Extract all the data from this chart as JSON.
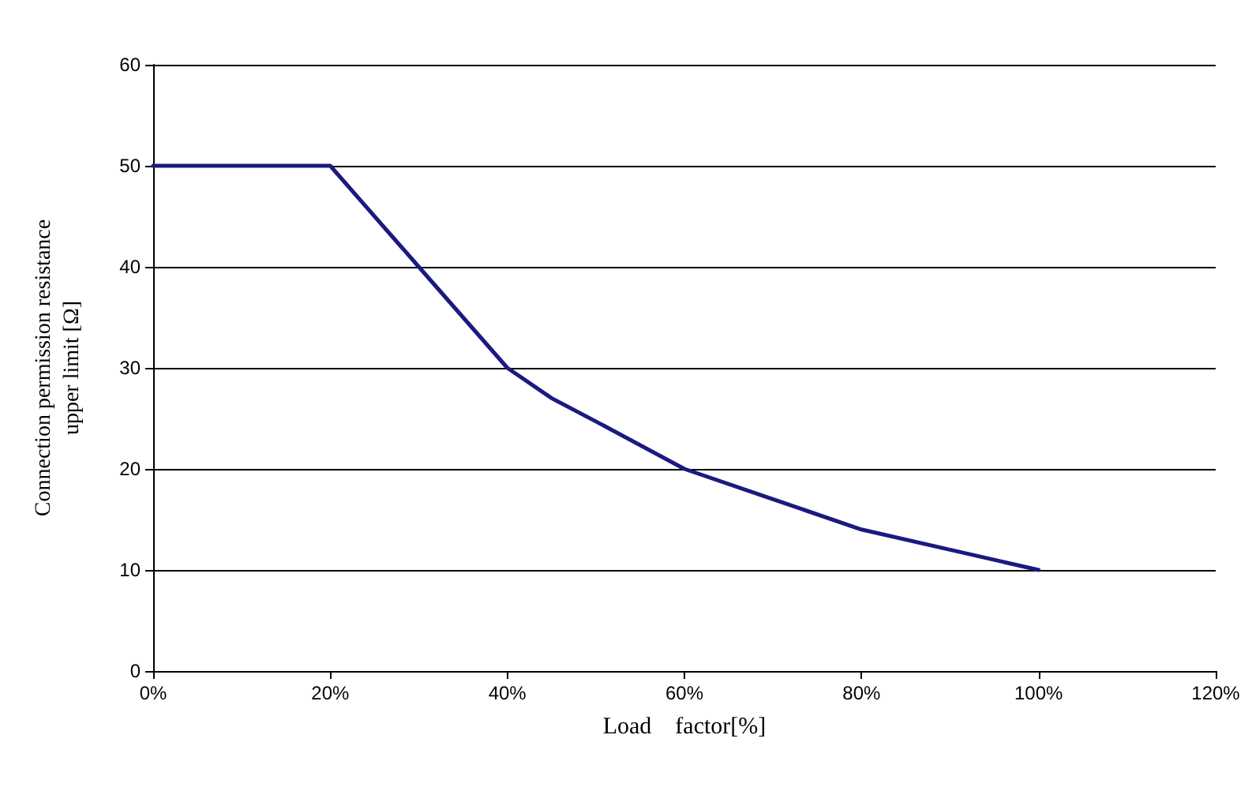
{
  "chart_data": {
    "type": "line",
    "xlabel": "Load　factor[%]",
    "ylabel": "Connection permission resistance\nupper limit [Ω]",
    "x": [
      0,
      20,
      30,
      35,
      40,
      45,
      50,
      60,
      70,
      80,
      90,
      100
    ],
    "series": [
      {
        "color": "#1a1a80",
        "values": [
          50,
          50,
          40,
          35,
          30,
          27,
          24.7,
          20,
          17,
          14,
          12,
          10
        ]
      }
    ],
    "xlim": [
      0,
      120
    ],
    "xticks": [
      {
        "value": 0,
        "label": "0%"
      },
      {
        "value": 20,
        "label": "20%"
      },
      {
        "value": 40,
        "label": "40%"
      },
      {
        "value": 60,
        "label": "60%"
      },
      {
        "value": 80,
        "label": "80%"
      },
      {
        "value": 100,
        "label": "100%"
      },
      {
        "value": 120,
        "label": "120%"
      }
    ],
    "ylim": [
      0,
      60
    ],
    "yticks": [
      0,
      10,
      20,
      30,
      40,
      50,
      60
    ],
    "grid": "y",
    "marker": "none",
    "line_style": "solid"
  }
}
